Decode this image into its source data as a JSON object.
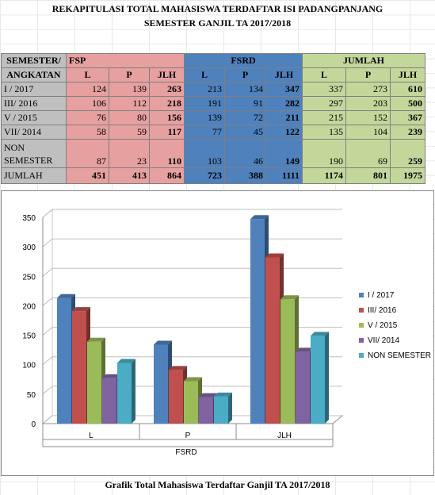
{
  "header": {
    "title_line1": "REKAPITULASI TOTAL MAHASISWA TERDAFTAR ISI PADANGPANJANG",
    "title_line2": "SEMESTER GANJIL TA 2017/2018"
  },
  "table": {
    "head_semester": "SEMESTER/",
    "head_angkatan": "ANGKATAN",
    "group_fsp": "FSP",
    "group_fsrd": "FSRD",
    "group_jumlah": "JUMLAH",
    "sub": [
      "L",
      "P",
      "JLH",
      "L",
      "P",
      "JLH",
      "L",
      "P",
      "JLH"
    ],
    "rows": [
      {
        "label": "I / 2017",
        "cells": [
          "124",
          "139",
          "263",
          "213",
          "134",
          "347",
          "337",
          "273",
          "610"
        ]
      },
      {
        "label": "III/ 2016",
        "cells": [
          "106",
          "112",
          "218",
          "191",
          "91",
          "282",
          "297",
          "203",
          "500"
        ]
      },
      {
        "label": "V / 2015",
        "cells": [
          "76",
          "80",
          "156",
          "139",
          "72",
          "211",
          "215",
          "152",
          "367"
        ]
      },
      {
        "label": "VII/ 2014",
        "cells": [
          "58",
          "59",
          "117",
          "77",
          "45",
          "122",
          "135",
          "104",
          "239"
        ]
      },
      {
        "label1": "NON",
        "label2": "SEMESTER",
        "cells": [
          "87",
          "23",
          "110",
          "103",
          "46",
          "149",
          "190",
          "69",
          "259"
        ]
      },
      {
        "label": "JUMLAH",
        "cells": [
          "451",
          "413",
          "864",
          "723",
          "388",
          "1111",
          "1174",
          "801",
          "1975"
        ]
      }
    ]
  },
  "chart_data": {
    "type": "bar",
    "categories": [
      "L",
      "P",
      "JLH"
    ],
    "xlabel": "FSRD",
    "ylim": [
      0,
      350
    ],
    "yticks": [
      0,
      50,
      100,
      150,
      200,
      250,
      300,
      350
    ],
    "legend_position": "right",
    "series": [
      {
        "name": "I / 2017",
        "values": [
          213,
          134,
          347
        ],
        "color": "#4f81bd"
      },
      {
        "name": "III/ 2016",
        "values": [
          191,
          91,
          282
        ],
        "color": "#c0504d"
      },
      {
        "name": "V / 2015",
        "values": [
          139,
          72,
          211
        ],
        "color": "#9bbb59"
      },
      {
        "name": "VII/ 2014",
        "values": [
          77,
          45,
          122
        ],
        "color": "#8064a2"
      },
      {
        "name": "NON SEMESTER",
        "values": [
          103,
          46,
          149
        ],
        "color": "#4bacc6"
      }
    ]
  },
  "caption": "Grafik Total Mahasiswa Terdaftar  Ganjil TA 2017/2018"
}
